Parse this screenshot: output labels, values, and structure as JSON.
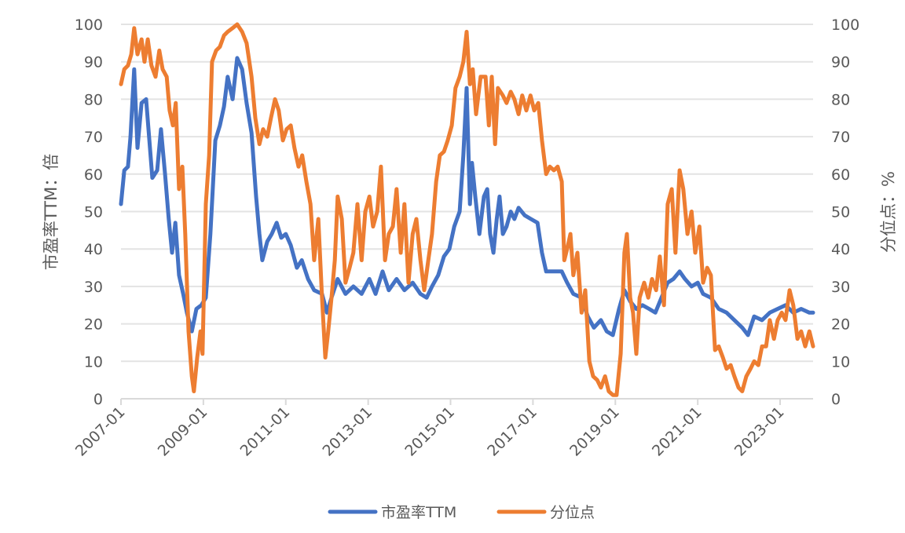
{
  "chart_data": {
    "type": "line",
    "title": "",
    "xlabel": "",
    "ylabel": "市盈率TTM：倍",
    "y2label": "分位点：%",
    "xlim": [
      2007.0,
      2023.8
    ],
    "ylim": [
      0,
      100
    ],
    "y2lim": [
      0,
      100
    ],
    "yticks": [
      "0",
      "10",
      "20",
      "30",
      "40",
      "50",
      "60",
      "70",
      "80",
      "90",
      "100"
    ],
    "y2ticks": [
      "0",
      "10",
      "20",
      "30",
      "40",
      "50",
      "60",
      "70",
      "80",
      "90",
      "100"
    ],
    "xticks": [
      {
        "year": 2007,
        "label": "2007-01"
      },
      {
        "year": 2009,
        "label": "2009-01"
      },
      {
        "year": 2011,
        "label": "2011-01"
      },
      {
        "year": 2013,
        "label": "2013-01"
      },
      {
        "year": 2015,
        "label": "2015-01"
      },
      {
        "year": 2017,
        "label": "2017-01"
      },
      {
        "year": 2019,
        "label": "2019-01"
      },
      {
        "year": 2021,
        "label": "2021-01"
      },
      {
        "year": 2023,
        "label": "2023-01"
      }
    ],
    "grid": true,
    "legend_position": "bottom",
    "series": [
      {
        "name": "市盈率TTM",
        "axis": "left",
        "color": "#4472C4",
        "x": [
          2007.0,
          2007.08,
          2007.17,
          2007.23,
          2007.32,
          2007.4,
          2007.5,
          2007.61,
          2007.76,
          2007.88,
          2007.97,
          2008.07,
          2008.16,
          2008.24,
          2008.32,
          2008.41,
          2008.51,
          2008.6,
          2008.72,
          2008.83,
          2008.95,
          2009.06,
          2009.17,
          2009.29,
          2009.4,
          2009.5,
          2009.59,
          2009.71,
          2009.82,
          2009.94,
          2010.05,
          2010.17,
          2010.28,
          2010.36,
          2010.43,
          2010.55,
          2010.66,
          2010.78,
          2010.89,
          2011.0,
          2011.12,
          2011.27,
          2011.39,
          2011.54,
          2011.69,
          2011.88,
          2012.0,
          2012.11,
          2012.26,
          2012.45,
          2012.64,
          2012.84,
          2013.03,
          2013.18,
          2013.35,
          2013.5,
          2013.69,
          2013.88,
          2014.08,
          2014.27,
          2014.42,
          2014.55,
          2014.7,
          2014.84,
          2014.97,
          2015.09,
          2015.22,
          2015.31,
          2015.39,
          2015.47,
          2015.52,
          2015.6,
          2015.7,
          2015.81,
          2015.89,
          2015.96,
          2016.04,
          2016.12,
          2016.19,
          2016.27,
          2016.36,
          2016.46,
          2016.55,
          2016.65,
          2016.8,
          2016.95,
          2017.11,
          2017.22,
          2017.32,
          2017.51,
          2017.7,
          2017.83,
          2017.98,
          2018.18,
          2018.33,
          2018.48,
          2018.65,
          2018.79,
          2018.94,
          2019.09,
          2019.22,
          2019.36,
          2019.51,
          2019.66,
          2019.82,
          2019.97,
          2020.12,
          2020.27,
          2020.41,
          2020.56,
          2020.69,
          2020.85,
          2021.0,
          2021.13,
          2021.32,
          2021.51,
          2021.7,
          2021.89,
          2022.08,
          2022.22,
          2022.37,
          2022.56,
          2022.75,
          2022.94,
          2023.13,
          2023.32,
          2023.51,
          2023.71,
          2023.8
        ],
        "y": [
          52,
          61,
          62,
          70,
          88,
          67,
          79,
          80,
          59,
          61,
          72,
          60,
          48,
          39,
          47,
          33,
          28,
          23,
          18,
          24,
          25,
          27,
          44,
          69,
          73,
          78,
          86,
          80,
          91,
          88,
          79,
          71,
          54,
          44,
          37,
          42,
          44,
          47,
          43,
          44,
          41,
          35,
          37,
          32,
          29,
          28,
          23,
          27,
          32,
          28,
          30,
          28,
          32,
          28,
          34,
          29,
          32,
          29,
          31,
          28,
          27,
          30,
          33,
          38,
          40,
          46,
          50,
          65,
          83,
          52,
          63,
          54,
          44,
          54,
          56,
          44,
          39,
          48,
          54,
          44,
          46,
          50,
          48,
          51,
          49,
          48,
          47,
          39,
          34,
          34,
          34,
          31,
          28,
          27,
          22,
          19,
          21,
          18,
          17,
          24,
          29,
          26,
          24,
          25,
          24,
          23,
          27,
          31,
          32,
          34,
          32,
          30,
          31,
          28,
          27,
          24,
          23,
          21,
          19,
          17,
          22,
          21,
          23,
          24,
          25,
          23,
          24,
          23,
          23
        ]
      },
      {
        "name": "分位点",
        "axis": "right",
        "color": "#ED7D31",
        "x": [
          2007.0,
          2007.08,
          2007.17,
          2007.25,
          2007.32,
          2007.4,
          2007.5,
          2007.57,
          2007.65,
          2007.74,
          2007.84,
          2007.93,
          2008.01,
          2008.11,
          2008.18,
          2008.26,
          2008.33,
          2008.41,
          2008.49,
          2008.56,
          2008.64,
          2008.72,
          2008.77,
          2008.85,
          2008.93,
          2008.98,
          2009.06,
          2009.14,
          2009.21,
          2009.31,
          2009.4,
          2009.5,
          2009.59,
          2009.71,
          2009.82,
          2009.94,
          2010.05,
          2010.17,
          2010.26,
          2010.36,
          2010.45,
          2010.55,
          2010.64,
          2010.74,
          2010.83,
          2010.93,
          2011.02,
          2011.12,
          2011.21,
          2011.31,
          2011.4,
          2011.5,
          2011.6,
          2011.69,
          2011.79,
          2011.88,
          2011.96,
          2012.03,
          2012.11,
          2012.19,
          2012.26,
          2012.36,
          2012.45,
          2012.55,
          2012.64,
          2012.74,
          2012.84,
          2012.93,
          2013.03,
          2013.12,
          2013.22,
          2013.31,
          2013.41,
          2013.5,
          2013.6,
          2013.69,
          2013.79,
          2013.88,
          2013.98,
          2014.08,
          2014.17,
          2014.27,
          2014.36,
          2014.46,
          2014.55,
          2014.65,
          2014.74,
          2014.84,
          2014.93,
          2015.03,
          2015.12,
          2015.22,
          2015.31,
          2015.39,
          2015.47,
          2015.54,
          2015.62,
          2015.73,
          2015.85,
          2015.93,
          2016.0,
          2016.08,
          2016.15,
          2016.27,
          2016.36,
          2016.46,
          2016.55,
          2016.65,
          2016.74,
          2016.84,
          2016.94,
          2017.03,
          2017.13,
          2017.22,
          2017.32,
          2017.41,
          2017.51,
          2017.6,
          2017.7,
          2017.76,
          2017.83,
          2017.91,
          2017.98,
          2018.08,
          2018.18,
          2018.27,
          2018.37,
          2018.46,
          2018.56,
          2018.65,
          2018.75,
          2018.84,
          2018.94,
          2019.03,
          2019.13,
          2019.22,
          2019.28,
          2019.36,
          2019.43,
          2019.51,
          2019.59,
          2019.7,
          2019.8,
          2019.89,
          2019.99,
          2020.08,
          2020.18,
          2020.27,
          2020.37,
          2020.46,
          2020.56,
          2020.65,
          2020.75,
          2020.85,
          2020.94,
          2021.04,
          2021.13,
          2021.23,
          2021.32,
          2021.42,
          2021.51,
          2021.61,
          2021.7,
          2021.8,
          2021.89,
          2021.99,
          2022.08,
          2022.18,
          2022.28,
          2022.37,
          2022.47,
          2022.56,
          2022.66,
          2022.75,
          2022.85,
          2022.94,
          2023.04,
          2023.13,
          2023.23,
          2023.32,
          2023.42,
          2023.51,
          2023.61,
          2023.71,
          2023.8
        ],
        "y": [
          84,
          88,
          89,
          92,
          99,
          92,
          96,
          90,
          96,
          89,
          86,
          93,
          88,
          86,
          77,
          73,
          79,
          56,
          62,
          44,
          18,
          6,
          2,
          11,
          18,
          12,
          52,
          65,
          90,
          93,
          94,
          97,
          98,
          99,
          100,
          98,
          95,
          86,
          75,
          68,
          72,
          70,
          75,
          80,
          77,
          69,
          72,
          73,
          67,
          62,
          65,
          58,
          52,
          37,
          48,
          27,
          11,
          18,
          27,
          37,
          54,
          48,
          31,
          35,
          39,
          52,
          37,
          50,
          54,
          46,
          50,
          62,
          37,
          44,
          46,
          56,
          39,
          52,
          31,
          44,
          48,
          37,
          29,
          37,
          44,
          58,
          65,
          66,
          69,
          73,
          83,
          86,
          90,
          98,
          84,
          88,
          76,
          86,
          86,
          73,
          86,
          68,
          83,
          81,
          79,
          82,
          80,
          76,
          81,
          77,
          81,
          77,
          79,
          69,
          60,
          62,
          61,
          62,
          58,
          37,
          40,
          44,
          33,
          39,
          23,
          29,
          10,
          6,
          5,
          3,
          6,
          2,
          1,
          1,
          12,
          39,
          44,
          27,
          23,
          12,
          27,
          31,
          27,
          32,
          29,
          38,
          25,
          52,
          56,
          39,
          61,
          56,
          44,
          50,
          39,
          46,
          31,
          35,
          33,
          13,
          14,
          11,
          8,
          9,
          6,
          3,
          2,
          6,
          8,
          10,
          9,
          14,
          14,
          21,
          16,
          21,
          23,
          21,
          29,
          25,
          16,
          18,
          14,
          18,
          14
        ]
      }
    ]
  }
}
